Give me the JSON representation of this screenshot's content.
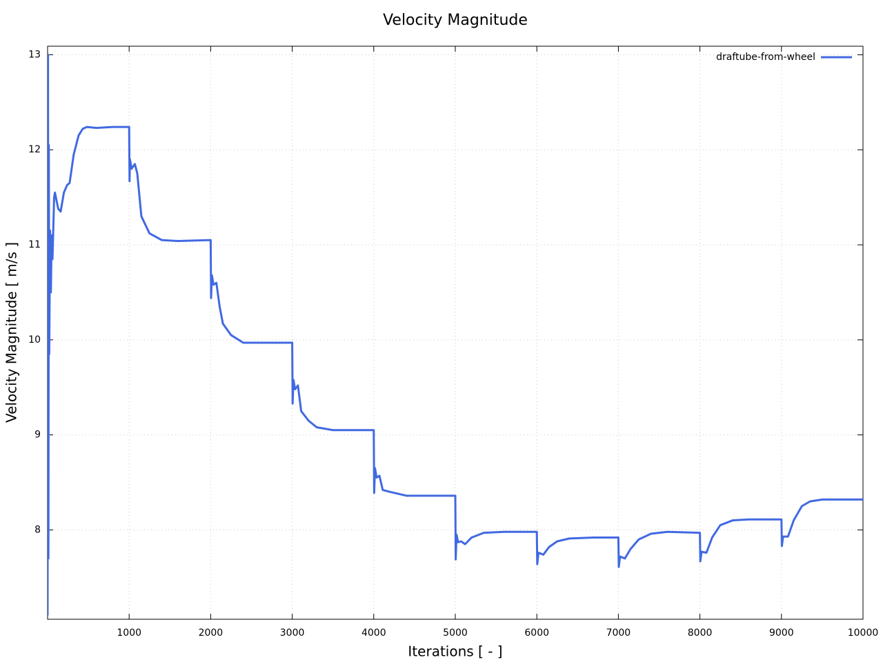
{
  "chart_data": {
    "type": "line",
    "title": "Velocity Magnitude",
    "x_label": "Iterations [ - ]",
    "y_label": "Velocity Magnitude [ m/s ]",
    "xlim": [
      0,
      10000
    ],
    "ylim": [
      7.06,
      13.09
    ],
    "xticks": [
      1000,
      2000,
      3000,
      4000,
      5000,
      6000,
      7000,
      8000,
      9000,
      10000
    ],
    "yticks": [
      8,
      9,
      10,
      11,
      12,
      13
    ],
    "grid": true,
    "legend": "top-right",
    "x": [
      0,
      5,
      10,
      15,
      20,
      30,
      40,
      50,
      60,
      80,
      90,
      130,
      160,
      200,
      240,
      270,
      320,
      380,
      430,
      480,
      600,
      800,
      1000,
      1005,
      1010,
      1030,
      1070,
      1100,
      1150,
      1250,
      1400,
      1600,
      2000,
      2005,
      2015,
      2035,
      2070,
      2110,
      2150,
      2250,
      2400,
      2600,
      3000,
      3005,
      3015,
      3035,
      3070,
      3110,
      3200,
      3300,
      3500,
      4000,
      4005,
      4015,
      4035,
      4070,
      4110,
      4200,
      4400,
      5000,
      5005,
      5015,
      5035,
      5070,
      5120,
      5200,
      5350,
      5600,
      6000,
      6005,
      6020,
      6080,
      6150,
      6250,
      6400,
      6700,
      7000,
      7005,
      7020,
      7080,
      7150,
      7250,
      7400,
      7600,
      8000,
      8005,
      8020,
      8080,
      8150,
      8250,
      8400,
      8600,
      9000,
      9005,
      9020,
      9080,
      9150,
      9250,
      9350,
      9500,
      10000
    ],
    "series": [
      {
        "name": "draftube-from-wheel",
        "color": "#4169e1",
        "values": [
          7.1,
          13.0,
          7.7,
          12.05,
          9.85,
          11.15,
          10.5,
          11.1,
          10.85,
          11.5,
          11.55,
          11.38,
          11.35,
          11.55,
          11.63,
          11.65,
          11.95,
          12.15,
          12.22,
          12.24,
          12.23,
          12.24,
          12.24,
          11.67,
          11.9,
          11.8,
          11.85,
          11.75,
          11.3,
          11.12,
          11.05,
          11.04,
          11.05,
          10.44,
          10.68,
          10.58,
          10.6,
          10.35,
          10.17,
          10.05,
          9.97,
          9.97,
          9.97,
          9.33,
          9.58,
          9.48,
          9.52,
          9.25,
          9.15,
          9.08,
          9.05,
          9.05,
          8.39,
          8.65,
          8.55,
          8.57,
          8.42,
          8.4,
          8.36,
          8.36,
          7.69,
          7.95,
          7.87,
          7.88,
          7.85,
          7.92,
          7.97,
          7.98,
          7.98,
          7.64,
          7.76,
          7.74,
          7.82,
          7.88,
          7.91,
          7.92,
          7.92,
          7.61,
          7.72,
          7.7,
          7.8,
          7.9,
          7.96,
          7.98,
          7.97,
          7.67,
          7.77,
          7.76,
          7.92,
          8.05,
          8.1,
          8.11,
          8.11,
          7.83,
          7.93,
          7.93,
          8.1,
          8.25,
          8.3,
          8.32,
          8.32
        ]
      }
    ]
  }
}
